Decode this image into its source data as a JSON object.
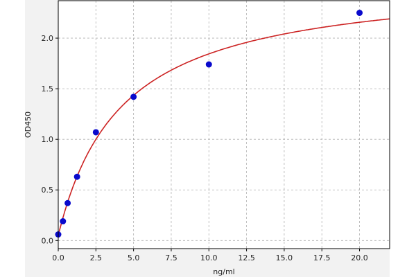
{
  "chart_data": {
    "type": "scatter",
    "title": "",
    "xlabel": "ng/ml",
    "ylabel": "OD450",
    "xlim": [
      0,
      22
    ],
    "ylim": [
      -0.08,
      2.37
    ],
    "x_ticks": [
      "0.0",
      "2.5",
      "5.0",
      "7.5",
      "10.0",
      "12.5",
      "15.0",
      "17.5",
      "20.0"
    ],
    "y_ticks": [
      "0.0",
      "0.5",
      "1.0",
      "1.5",
      "2.0"
    ],
    "grid": true,
    "series": [
      {
        "type": "scatter",
        "x": [
          0,
          0.3125,
          0.625,
          1.25,
          2.5,
          5,
          10,
          20
        ],
        "y": [
          0.06,
          0.19,
          0.37,
          0.63,
          1.07,
          1.42,
          1.74,
          2.25
        ],
        "color": "#0a0acc"
      }
    ],
    "fit_curve": {
      "type": "line",
      "model": "4PL",
      "a": 0.05,
      "b": 1.0,
      "c": 4.21,
      "d": 2.6,
      "color": "#cc2222"
    }
  }
}
